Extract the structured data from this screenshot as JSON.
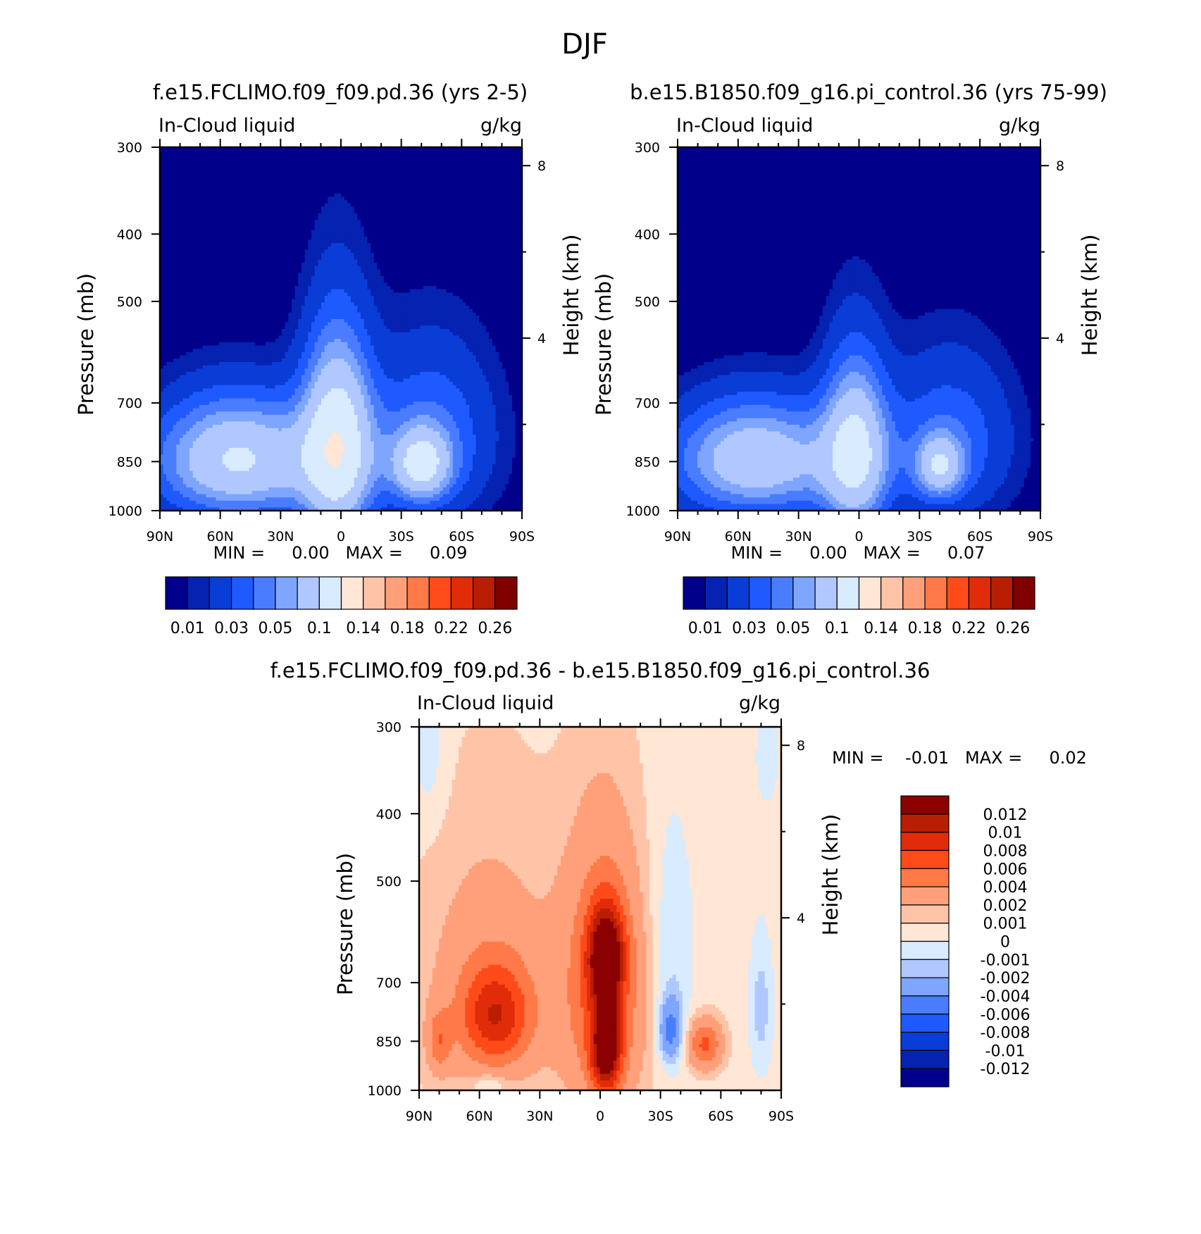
{
  "page": {
    "season": "DJF"
  },
  "panels": [
    {
      "title": "f.e15.FCLIMO.f09_f09.pd.36 (yrs 2-5)",
      "left_label": "In-Cloud liquid",
      "right_label": "g/kg",
      "min_max": "MIN =     0.00   MAX =     0.09"
    },
    {
      "title": "b.e15.B1850.f09_g16.pi_control.36 (yrs 75-99)",
      "left_label": "In-Cloud liquid",
      "right_label": "g/kg",
      "min_max": "MIN =     0.00   MAX =     0.07"
    },
    {
      "title": "f.e15.FCLIMO.f09_f09.pd.36 - b.e15.B1850.f09_g16.pi_control.36",
      "left_label": "In-Cloud liquid",
      "right_label": "g/kg",
      "min_max": "MIN =    -0.01   MAX =     0.02"
    }
  ],
  "chart_data": [
    {
      "type": "heatmap",
      "title": "f.e15.FCLIMO.f09_f09.pd.36 (yrs 2-5)",
      "variable": "In-Cloud liquid",
      "units": "g/kg",
      "xlabel": "",
      "ylabel": "Pressure (mb)",
      "y2label": "Height (km)",
      "x_ticks": [
        "90N",
        "60N",
        "30N",
        "0",
        "30S",
        "60S",
        "90S"
      ],
      "x_range": [
        90,
        -90
      ],
      "y_ticks": [
        300,
        400,
        500,
        700,
        850,
        1000
      ],
      "y_range": [
        1000,
        300
      ],
      "y_scale": "log",
      "y2_ticks": [
        8,
        4
      ],
      "min": 0.0,
      "max": 0.09,
      "colorbar_labels": [
        "0.01",
        "0.03",
        "0.05",
        "0.1",
        "0.14",
        "0.18",
        "0.22",
        "0.26"
      ],
      "colorbar_colors": [
        "#00008b",
        "#0522b0",
        "#0a3cd6",
        "#1e5aff",
        "#4a7cff",
        "#7ea6ff",
        "#b0c8ff",
        "#d8ebff",
        "#ffe6d5",
        "#ffc4a8",
        "#ffa07a",
        "#ff7a48",
        "#ff4a1a",
        "#e02c08",
        "#b81e04",
        "#800000"
      ],
      "field": {
        "background": 0.0,
        "lobes": [
          {
            "lat": 2,
            "p": 800,
            "sx": 12,
            "sy": 190,
            "amp": 0.08
          },
          {
            "lat": 55,
            "p": 840,
            "sx": 26,
            "sy": 120,
            "amp": 0.045
          },
          {
            "lat": -40,
            "p": 860,
            "sx": 10,
            "sy": 70,
            "amp": 0.06
          },
          {
            "lat": -45,
            "p": 780,
            "sx": 22,
            "sy": 160,
            "amp": 0.03
          },
          {
            "lat": 40,
            "p": 850,
            "sx": 35,
            "sy": 110,
            "amp": 0.03
          }
        ],
        "base_p": 650,
        "base_width": 45
      }
    },
    {
      "type": "heatmap",
      "title": "b.e15.B1850.f09_g16.pi_control.36 (yrs 75-99)",
      "variable": "In-Cloud liquid",
      "units": "g/kg",
      "xlabel": "",
      "ylabel": "Pressure (mb)",
      "y2label": "Height (km)",
      "x_ticks": [
        "90N",
        "60N",
        "30N",
        "0",
        "30S",
        "60S",
        "90S"
      ],
      "x_range": [
        90,
        -90
      ],
      "y_ticks": [
        300,
        400,
        500,
        700,
        850,
        1000
      ],
      "y_range": [
        1000,
        300
      ],
      "y_scale": "log",
      "y2_ticks": [
        8,
        4
      ],
      "min": 0.0,
      "max": 0.07,
      "colorbar_labels": [
        "0.01",
        "0.03",
        "0.05",
        "0.1",
        "0.14",
        "0.18",
        "0.22",
        "0.26"
      ],
      "colorbar_colors": [
        "#00008b",
        "#0522b0",
        "#0a3cd6",
        "#1e5aff",
        "#4a7cff",
        "#7ea6ff",
        "#b0c8ff",
        "#d8ebff",
        "#ffe6d5",
        "#ffc4a8",
        "#ffa07a",
        "#ff7a48",
        "#ff4a1a",
        "#e02c08",
        "#b81e04",
        "#800000"
      ],
      "field": {
        "background": 0.0,
        "lobes": [
          {
            "lat": 2,
            "p": 820,
            "sx": 11,
            "sy": 170,
            "amp": 0.065
          },
          {
            "lat": 55,
            "p": 840,
            "sx": 26,
            "sy": 110,
            "amp": 0.04
          },
          {
            "lat": -40,
            "p": 865,
            "sx": 8,
            "sy": 60,
            "amp": 0.05
          },
          {
            "lat": -45,
            "p": 790,
            "sx": 22,
            "sy": 150,
            "amp": 0.028
          },
          {
            "lat": 40,
            "p": 850,
            "sx": 35,
            "sy": 110,
            "amp": 0.028
          }
        ],
        "base_p": 650,
        "base_width": 45
      }
    },
    {
      "type": "heatmap",
      "title": "f.e15.FCLIMO.f09_f09.pd.36 - b.e15.B1850.f09_g16.pi_control.36",
      "variable": "In-Cloud liquid",
      "units": "g/kg",
      "xlabel": "",
      "ylabel": "Pressure (mb)",
      "y2label": "Height (km)",
      "x_ticks": [
        "90N",
        "60N",
        "30N",
        "0",
        "30S",
        "60S",
        "90S"
      ],
      "x_range": [
        90,
        -90
      ],
      "y_ticks": [
        300,
        400,
        500,
        700,
        850,
        1000
      ],
      "y_range": [
        1000,
        300
      ],
      "y_scale": "log",
      "y2_ticks": [
        8,
        4
      ],
      "min": -0.01,
      "max": 0.02,
      "colorbar_labels": [
        "0.012",
        "0.01",
        "0.008",
        "0.006",
        "0.004",
        "0.002",
        "0.001",
        "0",
        "-0.001",
        "-0.002",
        "-0.004",
        "-0.006",
        "-0.008",
        "-0.01",
        "-0.012"
      ],
      "colorbar_colors": [
        "#8b0000",
        "#b81e04",
        "#e02c08",
        "#ff4a1a",
        "#ff7a48",
        "#ffa07a",
        "#ffc4a8",
        "#ffe6d5",
        "#d8ebff",
        "#b0c8ff",
        "#7ea6ff",
        "#4a7cff",
        "#1e5aff",
        "#0a3cd6",
        "#0522b0",
        "#00008b"
      ],
      "field": {
        "background": 0.0005,
        "lobes": [
          {
            "lat": -3,
            "p": 640,
            "sx": 6,
            "sy": 70,
            "amp": 0.012
          },
          {
            "lat": -3,
            "p": 870,
            "sx": 5,
            "sy": 90,
            "amp": 0.012
          },
          {
            "lat": -2,
            "p": 720,
            "sx": 14,
            "sy": 220,
            "amp": 0.006
          },
          {
            "lat": 52,
            "p": 780,
            "sx": 12,
            "sy": 90,
            "amp": 0.0075
          },
          {
            "lat": 55,
            "p": 700,
            "sx": 25,
            "sy": 230,
            "amp": 0.0025
          },
          {
            "lat": 80,
            "p": 850,
            "sx": 4,
            "sy": 60,
            "amp": 0.004
          },
          {
            "lat": -52,
            "p": 860,
            "sx": 6,
            "sy": 50,
            "amp": 0.006
          },
          {
            "lat": -35,
            "p": 820,
            "sx": 4,
            "sy": 60,
            "amp": -0.005
          },
          {
            "lat": -35,
            "p": 640,
            "sx": 8,
            "sy": 180,
            "amp": -0.0015
          },
          {
            "lat": -80,
            "p": 760,
            "sx": 4,
            "sy": 120,
            "amp": -0.002
          },
          {
            "lat": 55,
            "p": 980,
            "sx": 6,
            "sy": 25,
            "amp": -0.002
          },
          {
            "lat": 85,
            "p": 330,
            "sx": 6,
            "sy": 60,
            "amp": -0.0012
          },
          {
            "lat": -83,
            "p": 330,
            "sx": 4,
            "sy": 40,
            "amp": -0.0012
          }
        ]
      }
    }
  ]
}
